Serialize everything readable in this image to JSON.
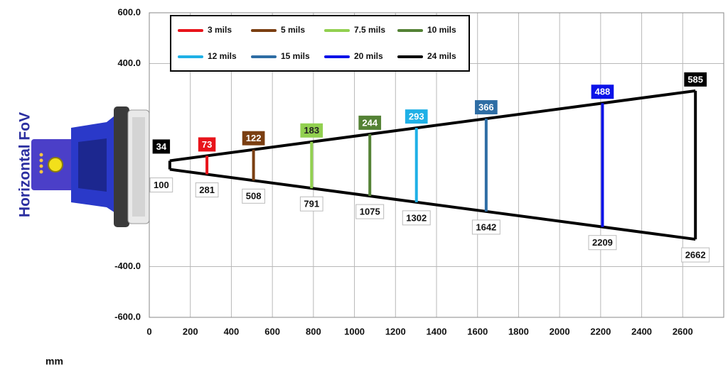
{
  "chart_data": {
    "type": "fov",
    "y_label": "Horizontal FoV",
    "x_label": "mm",
    "xlim": [
      0,
      2800
    ],
    "xticks": [
      0,
      200,
      400,
      600,
      800,
      1000,
      1200,
      1400,
      1600,
      1800,
      2000,
      2200,
      2400,
      2600
    ],
    "ylim": [
      -600,
      600
    ],
    "yticks": [
      {
        "value": 600,
        "label": "600.0"
      },
      {
        "value": 400,
        "label": "400.0"
      },
      {
        "value": -400,
        "label": "-400.0"
      },
      {
        "value": -600,
        "label": "-600.0"
      }
    ],
    "grid": true,
    "start": {
      "distance": 100,
      "width": 34
    },
    "series": [
      {
        "name": "3 mils",
        "color": "#e8141b",
        "distance": 281,
        "width": 73
      },
      {
        "name": "5 mils",
        "color": "#7b3f12",
        "distance": 508,
        "width": 122
      },
      {
        "name": "7.5 mils",
        "color": "#92d050",
        "distance": 791,
        "width": 183
      },
      {
        "name": "10 mils",
        "color": "#548235",
        "distance": 1075,
        "width": 244
      },
      {
        "name": "12 mils",
        "color": "#1fb0e6",
        "distance": 1302,
        "width": 293
      },
      {
        "name": "15 mils",
        "color": "#2e6da4",
        "distance": 1642,
        "width": 366
      },
      {
        "name": "20 mils",
        "color": "#0b12e8",
        "distance": 2209,
        "width": 488
      },
      {
        "name": "24 mils",
        "color": "#000000",
        "distance": 2662,
        "width": 585
      }
    ]
  }
}
